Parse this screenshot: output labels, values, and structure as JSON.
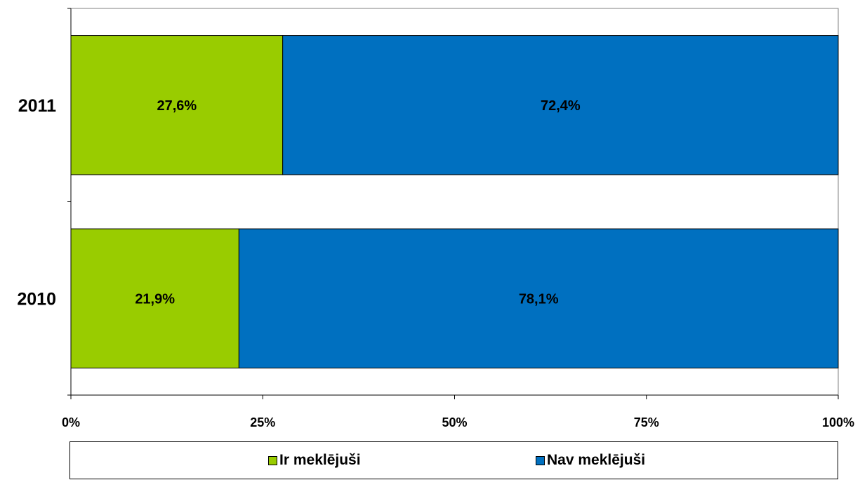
{
  "chart_data": {
    "type": "bar",
    "orientation": "horizontal",
    "stacked": true,
    "categories": [
      "2011",
      "2010"
    ],
    "series": [
      {
        "name": "Ir meklējuši",
        "values": [
          27.6,
          21.9
        ],
        "labels": [
          "27,6%",
          "21,9%"
        ],
        "color": "#99CC00"
      },
      {
        "name": "Nav meklējuši",
        "values": [
          72.4,
          78.1
        ],
        "labels": [
          "72,4%",
          "78,1%"
        ],
        "color": "#0070C0"
      }
    ],
    "xlim": [
      0,
      100
    ],
    "xticks": [
      0,
      25,
      50,
      75,
      100
    ],
    "xtick_labels": [
      "0%",
      "25%",
      "50%",
      "75%",
      "100%"
    ],
    "title": "",
    "xlabel": "",
    "ylabel": "",
    "grid": false,
    "legend_position": "bottom"
  }
}
